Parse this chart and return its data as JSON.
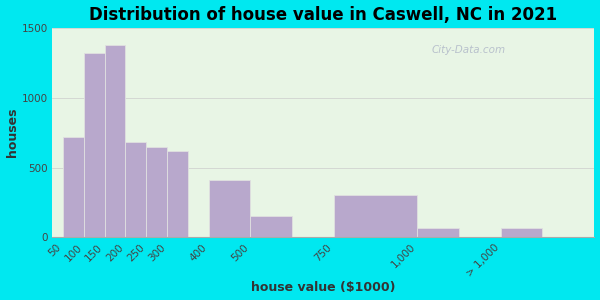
{
  "title": "Distribution of house value in Caswell, NC in 2021",
  "xlabel": "house value ($1000)",
  "ylabel": "houses",
  "bar_labels": [
    "50",
    "100",
    "150",
    "200",
    "250",
    "300",
    "400",
    "500",
    "750",
    "1,000",
    "> 1,000"
  ],
  "bar_values": [
    720,
    1320,
    1380,
    680,
    650,
    620,
    410,
    150,
    300,
    65,
    65
  ],
  "bar_color": "#b8a8cc",
  "bar_edgecolor": "#e0e0e0",
  "background_outer": "#00e8f0",
  "background_inner": "#e8f5e5",
  "ylim": [
    0,
    1500
  ],
  "yticks": [
    0,
    500,
    1000,
    1500
  ],
  "title_fontsize": 12,
  "axis_fontsize": 9,
  "tick_fontsize": 7.5,
  "watermark": "City-Data.com",
  "bar_positions": [
    0,
    1,
    2,
    3,
    4,
    5,
    7,
    9,
    13,
    17,
    21
  ],
  "bar_widths": [
    1,
    1,
    1,
    1,
    1,
    1,
    2,
    2,
    4,
    2,
    2
  ]
}
